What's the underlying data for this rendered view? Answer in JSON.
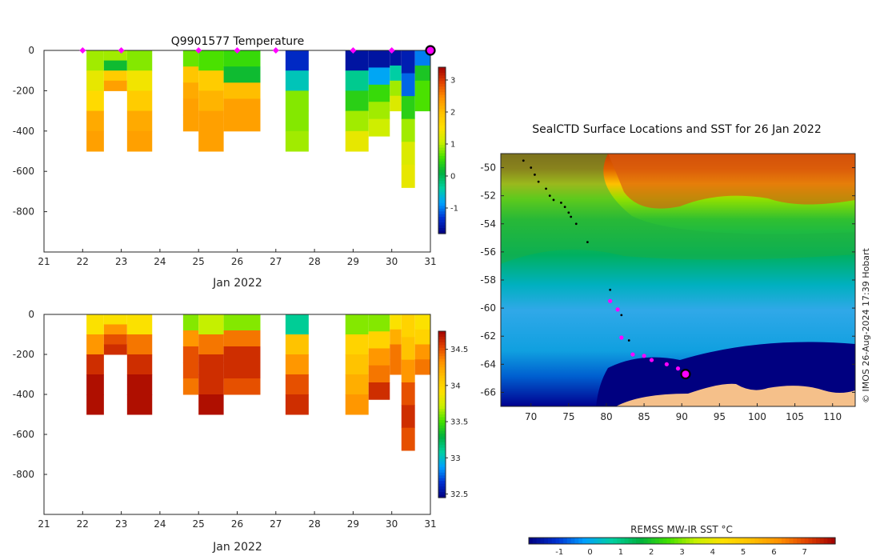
{
  "chart_data": [
    {
      "type": "heatmap",
      "title": "Q9901577  Temperature",
      "xlabel": "Jan 2022",
      "ylabel": "",
      "xlim": [
        21,
        31
      ],
      "ylim": [
        -1000,
        0
      ],
      "xticks": [
        "21",
        "22",
        "23",
        "24",
        "25",
        "26",
        "27",
        "28",
        "29",
        "30",
        "31"
      ],
      "yticks": [
        "0",
        "-200",
        "-400",
        "-600",
        "-800"
      ],
      "colorbar": {
        "min": -1.8,
        "max": 3.4,
        "ticks": [
          "-1",
          "0",
          "1",
          "2",
          "3"
        ],
        "colors": [
          "#00007f",
          "#0030d0",
          "#00a0ff",
          "#00d0a0",
          "#00b040",
          "#40e000",
          "#c8f000",
          "#ffe000",
          "#ffc000",
          "#ff9000",
          "#e04000",
          "#a00000"
        ]
      },
      "profiles": [
        {
          "x0": 22.1,
          "x1": 22.55,
          "bottom": -500,
          "values": [
            0.9,
            1.3,
            1.6,
            2.2,
            2.3
          ]
        },
        {
          "x0": 22.55,
          "x1": 23.15,
          "bottom": -200,
          "values": [
            0.9,
            0.2,
            1.8,
            2.3
          ]
        },
        {
          "x0": 23.15,
          "x1": 23.8,
          "bottom": -500,
          "values": [
            0.8,
            1.4,
            1.8,
            2.2,
            2.3
          ]
        },
        {
          "x0": 24.6,
          "x1": 25.0,
          "bottom": -400,
          "values": [
            0.7,
            1.9,
            2.2,
            2.3,
            2.3
          ]
        },
        {
          "x0": 25.0,
          "x1": 25.65,
          "bottom": -500,
          "values": [
            0.6,
            1.8,
            2.1,
            2.3,
            2.3
          ]
        },
        {
          "x0": 25.65,
          "x1": 26.6,
          "bottom": -400,
          "values": [
            0.5,
            0.2,
            2.0,
            2.3,
            2.3
          ]
        },
        {
          "x0": 27.25,
          "x1": 27.85,
          "bottom": -500,
          "values": [
            -1.4,
            -0.5,
            0.8,
            0.8,
            0.9
          ]
        },
        {
          "x0": 28.8,
          "x1": 29.4,
          "bottom": -500,
          "values": [
            -1.6,
            -0.3,
            0.4,
            0.9,
            1.3
          ]
        },
        {
          "x0": 29.4,
          "x1": 29.95,
          "bottom": -425,
          "values": [
            -1.6,
            -0.8,
            0.5,
            0.9,
            1.1
          ]
        },
        {
          "x0": 29.95,
          "x1": 30.25,
          "bottom": -300,
          "values": [
            -1.6,
            -0.4,
            0.9,
            1.2
          ]
        },
        {
          "x0": 30.25,
          "x1": 30.6,
          "bottom": -680,
          "values": [
            -1.5,
            -1.1,
            0.4,
            0.9,
            1.2,
            1.3
          ]
        },
        {
          "x0": 30.6,
          "x1": 31.0,
          "bottom": -300,
          "values": [
            -1.0,
            0.3,
            0.6,
            0.6
          ]
        }
      ],
      "markers_x": [
        22,
        23,
        25,
        26,
        27,
        29,
        30
      ],
      "current_marker_x": 31.0
    },
    {
      "type": "heatmap",
      "title": "",
      "xlabel": "Jan 2022",
      "ylabel": "",
      "xlim": [
        21,
        31
      ],
      "ylim": [
        -1000,
        0
      ],
      "xticks": [
        "21",
        "22",
        "23",
        "24",
        "25",
        "26",
        "27",
        "28",
        "29",
        "30",
        "31"
      ],
      "yticks": [
        "0",
        "-200",
        "-400",
        "-600",
        "-800"
      ],
      "colorbar": {
        "min": 32.45,
        "max": 34.75,
        "ticks": [
          "32.5",
          "33",
          "33.5",
          "34",
          "34.5"
        ],
        "colors": [
          "#00007f",
          "#0030d0",
          "#00a0ff",
          "#00d0a0",
          "#00b040",
          "#40e000",
          "#c8f000",
          "#ffe000",
          "#ffc000",
          "#ff9000",
          "#e04000",
          "#a00000"
        ]
      },
      "profiles": [
        {
          "x0": 22.1,
          "x1": 22.55,
          "bottom": -500,
          "values": [
            33.9,
            34.3,
            34.6,
            34.7,
            34.7
          ]
        },
        {
          "x0": 22.55,
          "x1": 23.15,
          "bottom": -200,
          "values": [
            33.9,
            34.3,
            34.5,
            34.6
          ]
        },
        {
          "x0": 23.15,
          "x1": 23.8,
          "bottom": -500,
          "values": [
            33.9,
            34.4,
            34.6,
            34.7,
            34.7
          ]
        },
        {
          "x0": 24.6,
          "x1": 25.0,
          "bottom": -400,
          "values": [
            33.6,
            34.3,
            34.5,
            34.5,
            34.4
          ]
        },
        {
          "x0": 25.0,
          "x1": 25.65,
          "bottom": -500,
          "values": [
            33.7,
            34.4,
            34.6,
            34.6,
            34.7
          ]
        },
        {
          "x0": 25.65,
          "x1": 26.6,
          "bottom": -400,
          "values": [
            33.6,
            34.4,
            34.6,
            34.6,
            34.5
          ]
        },
        {
          "x0": 27.25,
          "x1": 27.85,
          "bottom": -500,
          "values": [
            33.1,
            34.1,
            34.3,
            34.5,
            34.6
          ]
        },
        {
          "x0": 28.8,
          "x1": 29.4,
          "bottom": -500,
          "values": [
            33.6,
            34.0,
            34.1,
            34.2,
            34.3
          ]
        },
        {
          "x0": 29.4,
          "x1": 29.95,
          "bottom": -425,
          "values": [
            33.6,
            34.0,
            34.3,
            34.4,
            34.6
          ]
        },
        {
          "x0": 29.95,
          "x1": 30.25,
          "bottom": -300,
          "values": [
            33.9,
            34.2,
            34.4,
            34.4
          ]
        },
        {
          "x0": 30.25,
          "x1": 30.6,
          "bottom": -680,
          "values": [
            34.0,
            34.1,
            34.3,
            34.5,
            34.6,
            34.5
          ]
        },
        {
          "x0": 30.6,
          "x1": 31.0,
          "bottom": -300,
          "values": [
            33.9,
            34.0,
            34.3,
            34.4
          ]
        }
      ]
    },
    {
      "type": "heatmap",
      "title": "SealCTD Surface Locations and SST for 26 Jan 2022",
      "xlabel": "",
      "ylabel": "",
      "xlim": [
        66,
        113
      ],
      "ylim": [
        -67,
        -49
      ],
      "xticks": [
        "70",
        "75",
        "80",
        "85",
        "90",
        "95",
        "100",
        "105",
        "110"
      ],
      "yticks": [
        "-50",
        "-52",
        "-54",
        "-56",
        "-58",
        "-60",
        "-62",
        "-64",
        "-66"
      ],
      "colorbar": {
        "label": "REMSS MW-IR SST °C",
        "min": -2,
        "max": 8,
        "ticks": [
          "-1",
          "0",
          "1",
          "2",
          "3",
          "4",
          "5",
          "6",
          "7"
        ],
        "colors": [
          "#00007f",
          "#0030d0",
          "#00a0ff",
          "#00d0a0",
          "#00b040",
          "#40e000",
          "#c8f000",
          "#ffe000",
          "#ffc000",
          "#ff9000",
          "#e04000",
          "#a00000"
        ]
      },
      "track_black": [
        [
          69,
          -49.5
        ],
        [
          70,
          -50
        ],
        [
          70.5,
          -50.5
        ],
        [
          71,
          -51
        ],
        [
          72,
          -51.5
        ],
        [
          72.5,
          -52
        ],
        [
          73,
          -52.3
        ],
        [
          74,
          -52.5
        ],
        [
          74.5,
          -52.8
        ],
        [
          75,
          -53.2
        ],
        [
          75.3,
          -53.5
        ],
        [
          76,
          -54
        ],
        [
          77.5,
          -55.3
        ],
        [
          80.5,
          -58.7
        ],
        [
          82,
          -60.5
        ],
        [
          83,
          -62.3
        ]
      ],
      "track_magenta": [
        [
          80.5,
          -59.5
        ],
        [
          81.5,
          -60.1
        ],
        [
          82,
          -62.1
        ],
        [
          83.5,
          -63.3
        ],
        [
          85,
          -63.4
        ],
        [
          86,
          -63.7
        ],
        [
          88,
          -64
        ],
        [
          89.5,
          -64.3
        ],
        [
          90.5,
          -64.6
        ]
      ],
      "current_location": [
        90.5,
        -64.7
      ],
      "credit": "© IMOS 26-Aug-2024 17:39 Hobart"
    }
  ]
}
